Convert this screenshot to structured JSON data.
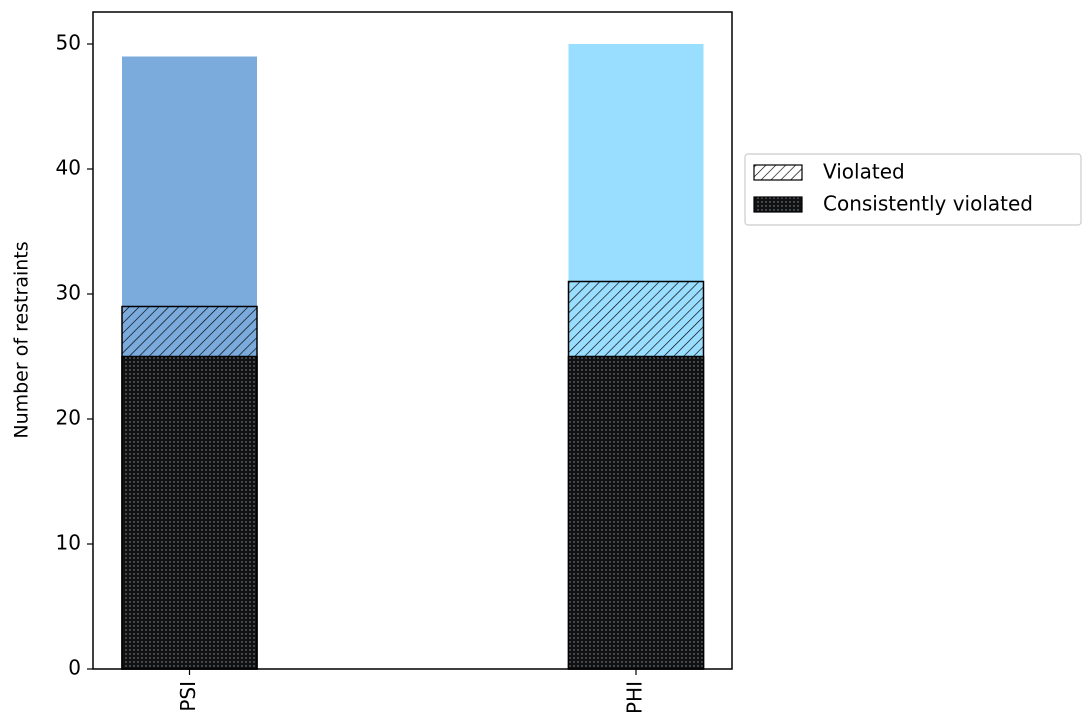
{
  "chart_data": {
    "type": "overlapped_bar",
    "y_label": "Number of restraints",
    "categories": [
      "PSI",
      "PHI"
    ],
    "values": [
      49,
      50
    ],
    "colors": [
      "#7aabdc",
      "#99ddff"
    ],
    "series": [
      {
        "name": "Violated",
        "values": [
          29,
          31
        ],
        "hatch": "diagonal"
      },
      {
        "name": "Consistently violated",
        "values": [
          25,
          25
        ],
        "hatch": "dots"
      }
    ],
    "ylim": [
      0,
      52.56
    ],
    "yticks": [
      0,
      10,
      20,
      30,
      40,
      50
    ],
    "legend": "right"
  }
}
